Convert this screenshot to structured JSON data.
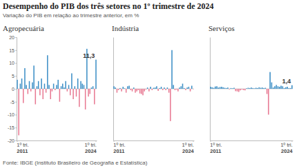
{
  "title": "Desempenho do PIB dos três setores no 1º trimestre de 2024",
  "subtitle": "Variação do PIB em relação ao trimestre anterior, em %",
  "source": "Fonte: IBGE (Instituto Brasileiro de Geografia e Estatística)",
  "chart_data": [
    {
      "type": "bar",
      "title": "Agropecuária",
      "categories": [
        "1º tri. 2011",
        null,
        null,
        null,
        null,
        null,
        null,
        null,
        null,
        null,
        null,
        null,
        null,
        null,
        null,
        null,
        null,
        null,
        null,
        null,
        null,
        null,
        null,
        null,
        null,
        null,
        null,
        null,
        null,
        null,
        null,
        null,
        null,
        null,
        null,
        null,
        null,
        null,
        null,
        null,
        null,
        null,
        null,
        null,
        null,
        null,
        null,
        null,
        null,
        null,
        null,
        null,
        "1º tri. 2024"
      ],
      "values": [
        3.5,
        -18,
        2.0,
        4.0,
        -5.5,
        8.0,
        1.5,
        -2.0,
        3.0,
        -1.0,
        2.5,
        9.0,
        -6.0,
        1.0,
        3.0,
        -2.5,
        4.0,
        -4.0,
        2.0,
        -1.5,
        13.0,
        1.5,
        -4.0,
        -1.0,
        2.0,
        -0.5,
        1.5,
        3.5,
        -5.0,
        1.0,
        2.0,
        0.5,
        3.0,
        -1.0,
        1.5,
        -2.5,
        6.0,
        -4.0,
        1.0,
        -3.0,
        4.0,
        -7.0,
        3.0,
        2.0,
        1.5,
        -8.0,
        15.5,
        -3.0,
        -2.0,
        0.5,
        1.0,
        -6.0,
        11.3
      ],
      "colors": [
        "#3d8fc6",
        "#e87a93",
        "#3d8fc6",
        "#3d8fc6",
        "#e87a93",
        "#3d8fc6",
        "#3d8fc6",
        "#e87a93",
        "#3d8fc6",
        "#e87a93",
        "#3d8fc6",
        "#3d8fc6",
        "#e87a93",
        "#3d8fc6",
        "#3d8fc6",
        "#e87a93",
        "#3d8fc6",
        "#e87a93",
        "#3d8fc6",
        "#e87a93",
        "#3d8fc6",
        "#3d8fc6",
        "#e87a93",
        "#e87a93",
        "#3d8fc6",
        "#e87a93",
        "#3d8fc6",
        "#3d8fc6",
        "#e87a93",
        "#3d8fc6",
        "#3d8fc6",
        "#3d8fc6",
        "#3d8fc6",
        "#e87a93",
        "#3d8fc6",
        "#e87a93",
        "#3d8fc6",
        "#e87a93",
        "#3d8fc6",
        "#e87a93",
        "#3d8fc6",
        "#e87a93",
        "#3d8fc6",
        "#3d8fc6",
        "#3d8fc6",
        "#e87a93",
        "#3d8fc6",
        "#e87a93",
        "#e87a93",
        "#3d8fc6",
        "#3d8fc6",
        "#e87a93",
        "#3d8fc6"
      ],
      "ylim": [
        -20,
        20
      ],
      "yticks": [
        -20,
        -15,
        -10,
        -5,
        0,
        5,
        10,
        15,
        20
      ],
      "grid": false,
      "annotations": [
        {
          "text": "11,3",
          "value": 11.3
        }
      ]
    },
    {
      "type": "bar",
      "title": "Indústria",
      "categories": [
        "1º tri. 2011",
        null,
        null,
        null,
        null,
        null,
        null,
        null,
        null,
        null,
        null,
        null,
        null,
        null,
        null,
        null,
        null,
        null,
        null,
        null,
        null,
        null,
        null,
        null,
        null,
        null,
        null,
        null,
        null,
        null,
        null,
        null,
        null,
        null,
        null,
        null,
        null,
        null,
        null,
        null,
        null,
        null,
        null,
        null,
        null,
        null,
        null,
        null,
        null,
        null,
        null,
        null,
        "1º tri. 2024"
      ],
      "values": [
        1.0,
        0.5,
        -1.5,
        -0.5,
        0.3,
        -1.0,
        0.8,
        0.2,
        -1.5,
        1.0,
        1.2,
        -0.5,
        -1.0,
        0.5,
        -1.5,
        -1.0,
        -0.5,
        -1.8,
        -2.0,
        -2.5,
        -1.0,
        -0.3,
        0.5,
        -1.0,
        0.8,
        -0.5,
        0.4,
        0.5,
        1.0,
        -0.8,
        0.3,
        0.8,
        -0.5,
        0.5,
        -0.5,
        0.5,
        -1.5,
        -12.5,
        15.0,
        1.5,
        -0.5,
        -0.3,
        -1.0,
        0.5,
        1.0,
        2.0,
        0.3,
        -0.5,
        0.5,
        0.8,
        -1.0,
        1.2,
        -0.1
      ],
      "colors": [
        "#3d8fc6",
        "#3d8fc6",
        "#e87a93",
        "#e87a93",
        "#3d8fc6",
        "#e87a93",
        "#3d8fc6",
        "#3d8fc6",
        "#e87a93",
        "#3d8fc6",
        "#3d8fc6",
        "#e87a93",
        "#e87a93",
        "#3d8fc6",
        "#e87a93",
        "#e87a93",
        "#e87a93",
        "#e87a93",
        "#e87a93",
        "#e87a93",
        "#e87a93",
        "#e87a93",
        "#3d8fc6",
        "#e87a93",
        "#3d8fc6",
        "#e87a93",
        "#3d8fc6",
        "#3d8fc6",
        "#3d8fc6",
        "#e87a93",
        "#3d8fc6",
        "#3d8fc6",
        "#e87a93",
        "#3d8fc6",
        "#e87a93",
        "#3d8fc6",
        "#e87a93",
        "#e87a93",
        "#3d8fc6",
        "#3d8fc6",
        "#e87a93",
        "#e87a93",
        "#e87a93",
        "#3d8fc6",
        "#3d8fc6",
        "#3d8fc6",
        "#3d8fc6",
        "#e87a93",
        "#3d8fc6",
        "#3d8fc6",
        "#e87a93",
        "#3d8fc6",
        "#e87a93"
      ],
      "ylim": [
        -20,
        20
      ],
      "grid": false,
      "tick_labels": "x"
    },
    {
      "type": "bar",
      "title": "Serviços",
      "categories": [
        "1º tri. 2011",
        null,
        null,
        null,
        null,
        null,
        null,
        null,
        null,
        null,
        null,
        null,
        null,
        null,
        null,
        null,
        null,
        null,
        null,
        null,
        null,
        null,
        null,
        null,
        null,
        null,
        null,
        null,
        null,
        null,
        null,
        null,
        null,
        null,
        null,
        null,
        null,
        null,
        null,
        null,
        null,
        null,
        null,
        null,
        null,
        null,
        null,
        null,
        null,
        null,
        null,
        null,
        "1º tri. 2024"
      ],
      "values": [
        0.8,
        0.6,
        0.4,
        0.9,
        1.0,
        0.5,
        0.7,
        0.8,
        0.6,
        0.4,
        0.3,
        0.5,
        -0.2,
        0.3,
        0.2,
        0.4,
        -0.9,
        -1.0,
        -1.2,
        -0.6,
        -0.3,
        -0.5,
        -0.6,
        0.2,
        0.4,
        0.3,
        0.5,
        0.3,
        0.2,
        0.4,
        0.3,
        0.6,
        0.4,
        0.5,
        0.3,
        0.4,
        -2.0,
        -10.0,
        6.5,
        2.5,
        0.5,
        1.0,
        1.5,
        1.0,
        0.8,
        1.2,
        1.0,
        0.3,
        0.6,
        0.8,
        0.3,
        0.3,
        1.4
      ],
      "colors": [
        "#3d8fc6",
        "#3d8fc6",
        "#3d8fc6",
        "#3d8fc6",
        "#3d8fc6",
        "#3d8fc6",
        "#3d8fc6",
        "#3d8fc6",
        "#3d8fc6",
        "#3d8fc6",
        "#3d8fc6",
        "#3d8fc6",
        "#e87a93",
        "#3d8fc6",
        "#3d8fc6",
        "#3d8fc6",
        "#e87a93",
        "#e87a93",
        "#e87a93",
        "#e87a93",
        "#e87a93",
        "#e87a93",
        "#e87a93",
        "#3d8fc6",
        "#3d8fc6",
        "#3d8fc6",
        "#3d8fc6",
        "#3d8fc6",
        "#3d8fc6",
        "#3d8fc6",
        "#3d8fc6",
        "#3d8fc6",
        "#3d8fc6",
        "#3d8fc6",
        "#3d8fc6",
        "#3d8fc6",
        "#e87a93",
        "#e87a93",
        "#3d8fc6",
        "#3d8fc6",
        "#3d8fc6",
        "#3d8fc6",
        "#3d8fc6",
        "#3d8fc6",
        "#3d8fc6",
        "#3d8fc6",
        "#3d8fc6",
        "#3d8fc6",
        "#3d8fc6",
        "#3d8fc6",
        "#3d8fc6",
        "#3d8fc6",
        "#3d8fc6"
      ],
      "ylim": [
        -20,
        20
      ],
      "grid": false,
      "tick_labels": "x",
      "annotations": [
        {
          "text": "1,4",
          "value": 1.4
        }
      ]
    }
  ]
}
